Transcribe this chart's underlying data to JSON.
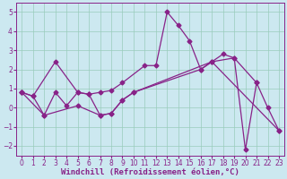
{
  "xlabel": "Windchill (Refroidissement éolien,°C)",
  "x_values": [
    0,
    1,
    2,
    3,
    4,
    5,
    6,
    7,
    8,
    9,
    10,
    11,
    12,
    13,
    14,
    15,
    16,
    17,
    18,
    19,
    20,
    21,
    22,
    23
  ],
  "line1_x": [
    0,
    1,
    3,
    5,
    6,
    7,
    8,
    9,
    11,
    12,
    13,
    14,
    15,
    16,
    18,
    19,
    21
  ],
  "line1_y": [
    0.8,
    0.6,
    2.4,
    0.8,
    0.7,
    0.8,
    0.9,
    1.3,
    2.2,
    2.2,
    5.0,
    4.3,
    3.5,
    2.0,
    2.8,
    2.6,
    1.3
  ],
  "line2_x": [
    0,
    1,
    2,
    3,
    4,
    5,
    6,
    7,
    8,
    9,
    10,
    16,
    17,
    23
  ],
  "line2_y": [
    0.8,
    0.6,
    -0.4,
    0.8,
    0.1,
    0.8,
    0.7,
    -0.4,
    -0.3,
    0.4,
    0.8,
    2.0,
    2.4,
    -1.2
  ],
  "line3_x": [
    0,
    2,
    5,
    7,
    8,
    9,
    10,
    17,
    19,
    20,
    21,
    22,
    23
  ],
  "line3_y": [
    0.8,
    -0.4,
    0.1,
    -0.4,
    -0.3,
    0.4,
    0.8,
    2.4,
    2.6,
    -2.2,
    1.3,
    0.0,
    -1.2
  ],
  "bg_color": "#cce8f0",
  "line_color": "#882288",
  "grid_color": "#99ccbb",
  "ylim": [
    -2.5,
    5.5
  ],
  "xlim": [
    -0.5,
    23.5
  ],
  "yticks": [
    -2,
    -1,
    0,
    1,
    2,
    3,
    4,
    5
  ],
  "xticks": [
    0,
    1,
    2,
    3,
    4,
    5,
    6,
    7,
    8,
    9,
    10,
    11,
    12,
    13,
    14,
    15,
    16,
    17,
    18,
    19,
    20,
    21,
    22,
    23
  ],
  "tick_fontsize": 5.5,
  "label_fontsize": 6.5,
  "marker_size": 2.5,
  "line_width": 0.9
}
